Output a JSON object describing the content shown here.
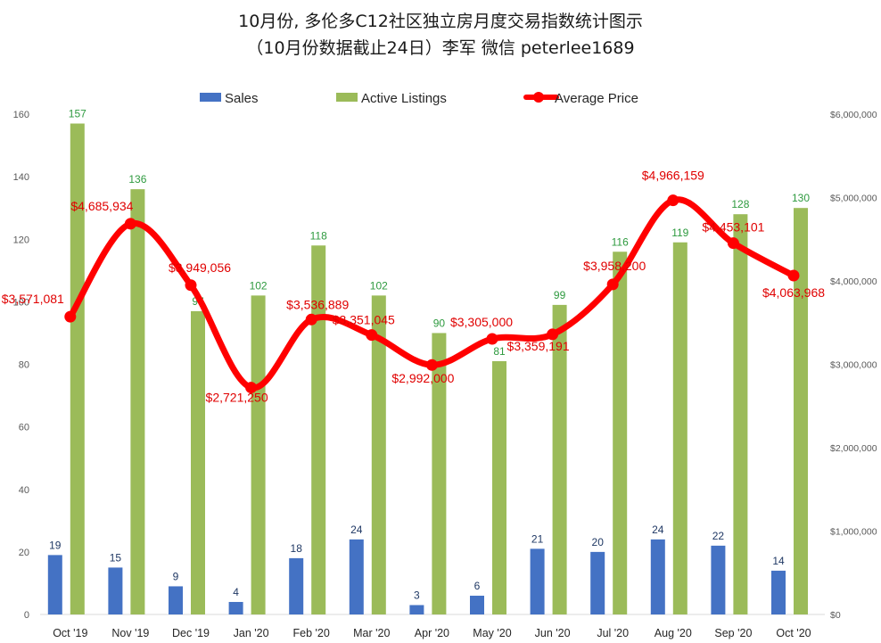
{
  "title": {
    "line1": "10月份, 多伦多C12社区独立房月度交易指数统计图示",
    "line2": "（10月份数据截止24日）李军 微信 peterlee1689"
  },
  "colors": {
    "sales": "#4472c4",
    "listings": "#9bbb59",
    "price": "#ff0000",
    "sales_label": "#1f3864",
    "listing_label": "#2e9a3f",
    "price_label": "#e00000"
  },
  "legend": [
    {
      "key": "sales",
      "label": "Sales"
    },
    {
      "key": "listings",
      "label": "Active Listings"
    },
    {
      "key": "price",
      "label": "Average Price"
    }
  ],
  "chart_data": {
    "type": "bar",
    "categories": [
      "Oct '19",
      "Nov '19",
      "Dec '19",
      "Jan '20",
      "Feb '20",
      "Mar '20",
      "Apr '20",
      "May '20",
      "Jun '20",
      "Jul '20",
      "Aug '20",
      "Sep '20",
      "Oct '20"
    ],
    "series": [
      {
        "name": "Sales",
        "type": "bar",
        "axis": "left",
        "values": [
          19,
          15,
          9,
          4,
          18,
          24,
          3,
          6,
          21,
          20,
          24,
          22,
          14
        ]
      },
      {
        "name": "Active Listings",
        "type": "bar",
        "axis": "left",
        "values": [
          157,
          136,
          97,
          102,
          118,
          102,
          90,
          81,
          99,
          116,
          119,
          128,
          130
        ]
      },
      {
        "name": "Average Price",
        "type": "line",
        "axis": "right",
        "values": [
          3571081,
          4685934,
          3949056,
          2721250,
          3536889,
          3351045,
          2992000,
          3305000,
          3359191,
          3958200,
          4966159,
          4453101,
          4063968
        ],
        "labels": [
          "$3,571,081",
          "$4,685,934",
          "$3,949,056",
          "$2,721,250",
          "$3,536,889",
          "$3,351,045",
          "$2,992,000",
          "$3,305,000",
          "$3,359,191",
          "$3,958,200",
          "$4,966,159",
          "$4,453,101",
          "$4,063,968"
        ]
      }
    ],
    "y_left": {
      "ylim": [
        0,
        160
      ],
      "ticks": [
        0,
        20,
        40,
        60,
        80,
        100,
        120,
        140,
        160
      ],
      "tick_labels": [
        "0",
        "20",
        "40",
        "60",
        "80",
        "100",
        "120",
        "140",
        "160"
      ]
    },
    "y_right": {
      "ylim": [
        0,
        6000000
      ],
      "ticks": [
        0,
        1000000,
        2000000,
        3000000,
        4000000,
        5000000,
        6000000
      ],
      "tick_labels": [
        "$0",
        "$1,000,000",
        "$2,000,000",
        "$3,000,000",
        "$4,000,000",
        "$5,000,000",
        "$6,000,000"
      ]
    },
    "grid": false,
    "legend_position": "top"
  }
}
